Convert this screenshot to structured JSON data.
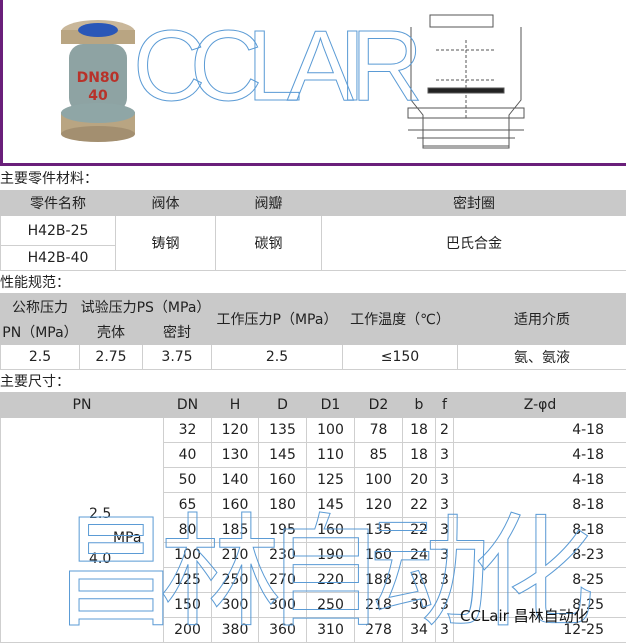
{
  "header_image": {
    "valve_label_dn": "DN80",
    "valve_label_pn": "40",
    "watermark": "CCLAIR"
  },
  "materials": {
    "title": "主要零件材料：",
    "headers": [
      "零件名称",
      "阀体",
      "阀瓣",
      "密封圈"
    ],
    "models": [
      "H42B-25",
      "H42B-40"
    ],
    "body": "铸钢",
    "disc": "碳钢",
    "seal": "巴氏合金"
  },
  "performance": {
    "title": "性能规范：",
    "h_pn": "公称压力",
    "h_pn_unit": "PN（MPa）",
    "h_test": "试验压力PS（MPa）",
    "h_shell": "壳体",
    "h_seal": "密封",
    "h_work_p": "工作压力P（MPa）",
    "h_temp": "工作温度（℃）",
    "h_medium": "适用介质",
    "row": [
      "2.5",
      "2.75",
      "3.75",
      "2.5",
      "≤150",
      "氨、氨液"
    ]
  },
  "dimensions": {
    "title": "主要尺寸：",
    "headers": [
      "PN",
      "DN",
      "H",
      "D",
      "D1",
      "D2",
      "b",
      "f",
      "Z-φd"
    ],
    "pn_values": [
      "2.5",
      "4.0"
    ],
    "pn_unit": "MPa",
    "rows": [
      [
        "32",
        "120",
        "135",
        "100",
        "78",
        "18",
        "2",
        "4-18"
      ],
      [
        "40",
        "130",
        "145",
        "110",
        "85",
        "18",
        "3",
        "4-18"
      ],
      [
        "50",
        "140",
        "160",
        "125",
        "100",
        "20",
        "3",
        "4-18"
      ],
      [
        "65",
        "160",
        "180",
        "145",
        "120",
        "22",
        "3",
        "8-18"
      ],
      [
        "80",
        "185",
        "195",
        "160",
        "135",
        "22",
        "3",
        "8-18"
      ],
      [
        "100",
        "210",
        "230",
        "190",
        "160",
        "24",
        "3",
        "8-23"
      ],
      [
        "125",
        "250",
        "270",
        "220",
        "188",
        "28",
        "3",
        "8-25"
      ],
      [
        "150",
        "300",
        "300",
        "250",
        "218",
        "30",
        "3",
        "8-25"
      ],
      [
        "200",
        "380",
        "360",
        "310",
        "278",
        "34",
        "3",
        "12-25"
      ]
    ]
  },
  "watermarks": {
    "big": "昌林自动化",
    "caption": "CCLair 昌林自动化"
  },
  "colors": {
    "frame": "#6a1f7a",
    "header_bg": "#c9c9c9",
    "watermark": "#5b9bd5"
  }
}
